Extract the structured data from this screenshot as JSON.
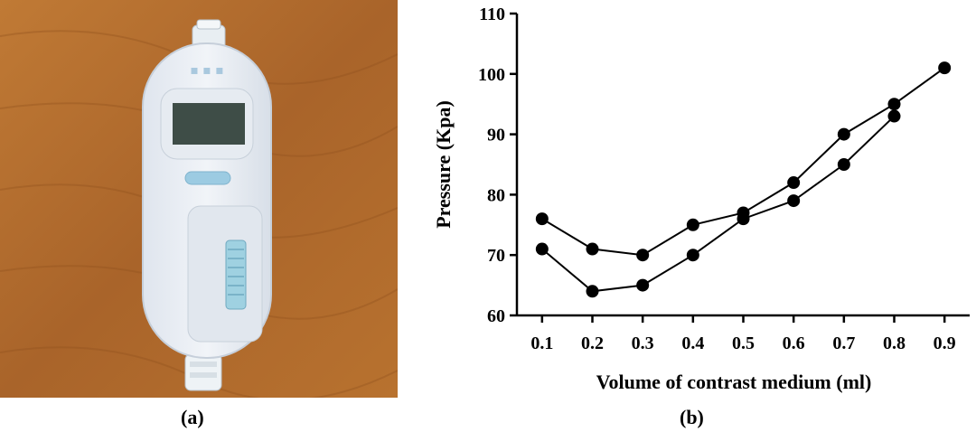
{
  "panels": {
    "a_label": "(a)",
    "b_label": "(b)"
  },
  "photo": {
    "description_icon": "device-photo",
    "colors": {
      "wood": "#b66f2d",
      "device": "#e9eef5",
      "button": "#9cc9e0",
      "screen": "#3a4a44"
    }
  },
  "chart_data": {
    "type": "line",
    "xlabel": "Volume of contrast medium (ml)",
    "ylabel": "Pressure (Kpa)",
    "x_ticks": [
      "0.1",
      "0.2",
      "0.3",
      "0.4",
      "0.5",
      "0.6",
      "0.7",
      "0.8",
      "0.9"
    ],
    "y_ticks": [
      "60",
      "70",
      "80",
      "90",
      "100",
      "110"
    ],
    "xlim": [
      0.05,
      0.95
    ],
    "ylim": [
      60,
      110
    ],
    "grid": false,
    "series": [
      {
        "x": [
          0.1,
          0.2,
          0.3,
          0.4,
          0.5,
          0.6,
          0.7,
          0.8,
          0.9
        ],
        "values": [
          76,
          71,
          70,
          75,
          77,
          82,
          90,
          95,
          101
        ]
      },
      {
        "x": [
          0.1,
          0.2,
          0.3,
          0.4,
          0.5,
          0.6,
          0.7,
          0.8
        ],
        "values": [
          71,
          64,
          65,
          70,
          76,
          79,
          85,
          93
        ]
      }
    ],
    "marker": "filled-circle",
    "color": "#000000"
  }
}
